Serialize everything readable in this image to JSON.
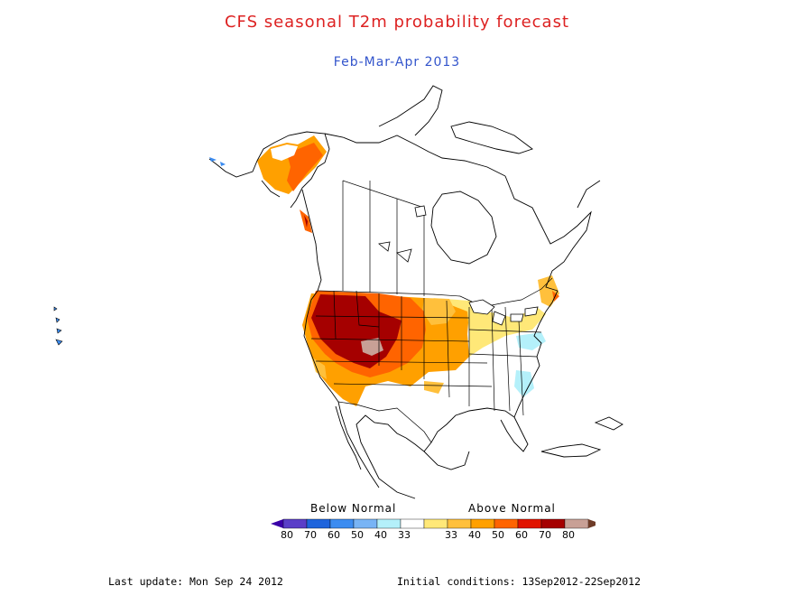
{
  "title": "CFS seasonal T2m probability forecast",
  "subtitle": "Feb-Mar-Apr 2013",
  "colors": {
    "title": "#dd2222",
    "subtitle": "#3355cc",
    "coast": "#000000",
    "below": [
      "#3a00a8",
      "#5a3ec8",
      "#1e64dc",
      "#3c8cf0",
      "#78b4f5",
      "#b4f0fa"
    ],
    "normal": "#ffffff",
    "above": [
      "#ffe878",
      "#ffc03c",
      "#ffa000",
      "#ff6400",
      "#e11400",
      "#a50000",
      "#c8a096",
      "#6e3c28"
    ]
  },
  "legend": {
    "below_label": "Below Normal",
    "above_label": "Above Normal",
    "ticks": [
      "80",
      "70",
      "60",
      "50",
      "40",
      "33",
      "33",
      "40",
      "50",
      "60",
      "70",
      "80"
    ]
  },
  "footer": {
    "last_update": "Last update: Mon Sep 24 2012",
    "initial_conditions": "Initial conditions: 13Sep2012-22Sep2012"
  }
}
